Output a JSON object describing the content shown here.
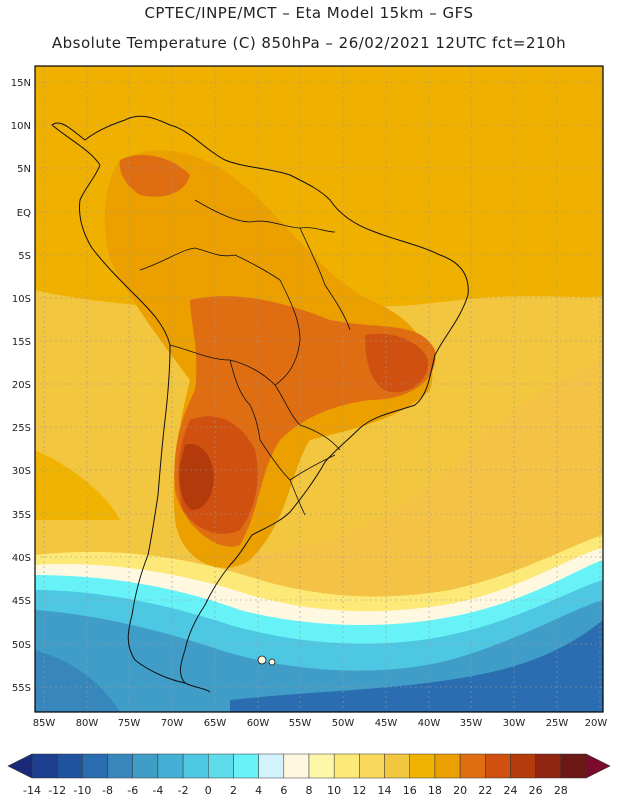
{
  "header": {
    "line1": "CPTEC/INPE/MCT –  Eta Model 15km – GFS",
    "line2": "Absolute Temperature (C) 850hPa – 26/02/2021 12UTC fct=210h"
  },
  "axes": {
    "lat_labels": [
      "15N",
      "10N",
      "5N",
      "EQ",
      "5S",
      "10S",
      "15S",
      "20S",
      "25S",
      "30S",
      "35S",
      "40S",
      "45S",
      "50S",
      "55S"
    ],
    "lon_labels": [
      "85W",
      "80W",
      "75W",
      "70W",
      "65W",
      "60W",
      "55W",
      "50W",
      "45W",
      "40W",
      "35W",
      "30W",
      "25W",
      "20W"
    ]
  },
  "colorbar": {
    "labels": [
      "-14",
      "-12",
      "-10",
      "-8",
      "-6",
      "-4",
      "-2",
      "0",
      "2",
      "4",
      "6",
      "8",
      "10",
      "12",
      "14",
      "16",
      "18",
      "20",
      "22",
      "24",
      "26",
      "28"
    ],
    "colors": [
      "#1e3f8f",
      "#21529f",
      "#2a6db0",
      "#3787bd",
      "#3f9dc8",
      "#45b0d6",
      "#4ec7e2",
      "#5edcec",
      "#66f2f7",
      "#d2f2fc",
      "#fff8e1",
      "#fff7a8",
      "#fde978",
      "#f9d85c",
      "#f3c640",
      "#f0b400",
      "#eba000",
      "#df6d12",
      "#d05010",
      "#b33a0a",
      "#8f2410",
      "#6b1816"
    ],
    "under_color": "#1b2a78",
    "over_color": "#7c0a2a"
  }
}
